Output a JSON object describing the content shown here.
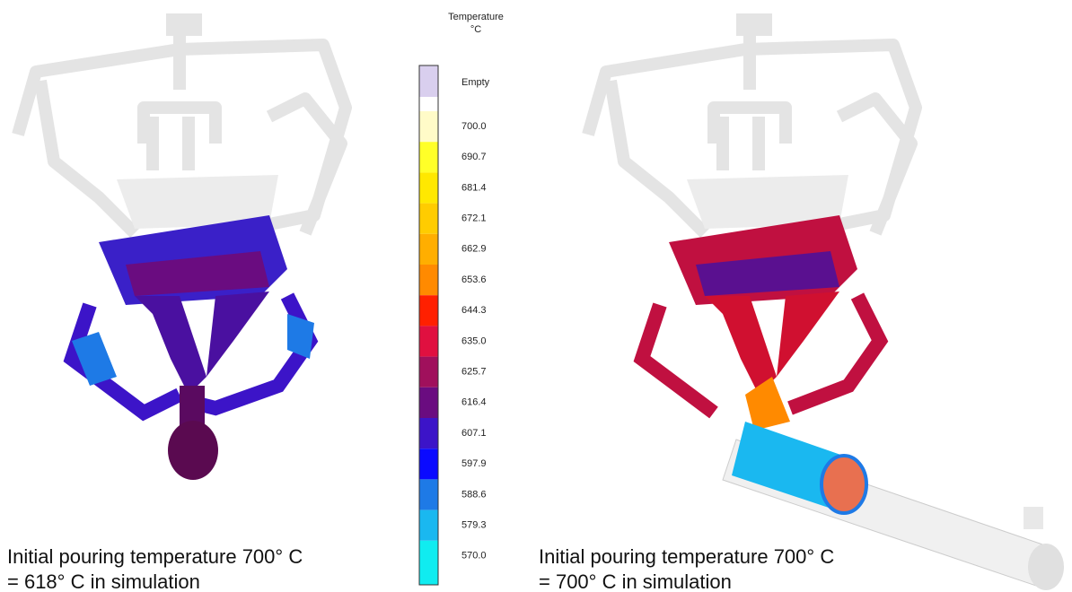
{
  "legend": {
    "title": "Temperature",
    "unit": "°C",
    "bands": [
      {
        "label": "Empty",
        "color": "#d9cfee"
      },
      {
        "color": "#ffffff"
      },
      {
        "label": "700.0",
        "color": "#fffbc8"
      },
      {
        "label": "690.7",
        "color": "#ffff28"
      },
      {
        "label": "681.4",
        "color": "#ffe800"
      },
      {
        "label": "672.1",
        "color": "#ffcc00"
      },
      {
        "label": "662.9",
        "color": "#ffae00"
      },
      {
        "label": "653.6",
        "color": "#ff8a00"
      },
      {
        "label": "644.3",
        "color": "#ff2000"
      },
      {
        "label": "635.0",
        "color": "#e01040"
      },
      {
        "label": "625.7",
        "color": "#a0105c"
      },
      {
        "label": "616.4",
        "color": "#6a0c80"
      },
      {
        "label": "607.1",
        "color": "#3c14c8"
      },
      {
        "label": "597.9",
        "color": "#0a0aff"
      },
      {
        "label": "588.6",
        "color": "#1e7ae6"
      },
      {
        "label": "579.3",
        "color": "#1ab8f0"
      },
      {
        "label": "570.0",
        "color": "#10ecf0"
      }
    ]
  },
  "left_caption": {
    "lines": [
      "Initial pouring temperature 700° C",
      "= 618° C in simulation"
    ]
  },
  "right_caption": {
    "lines": [
      "Initial pouring temperature 700° C",
      "= 700° C in simulation"
    ]
  }
}
